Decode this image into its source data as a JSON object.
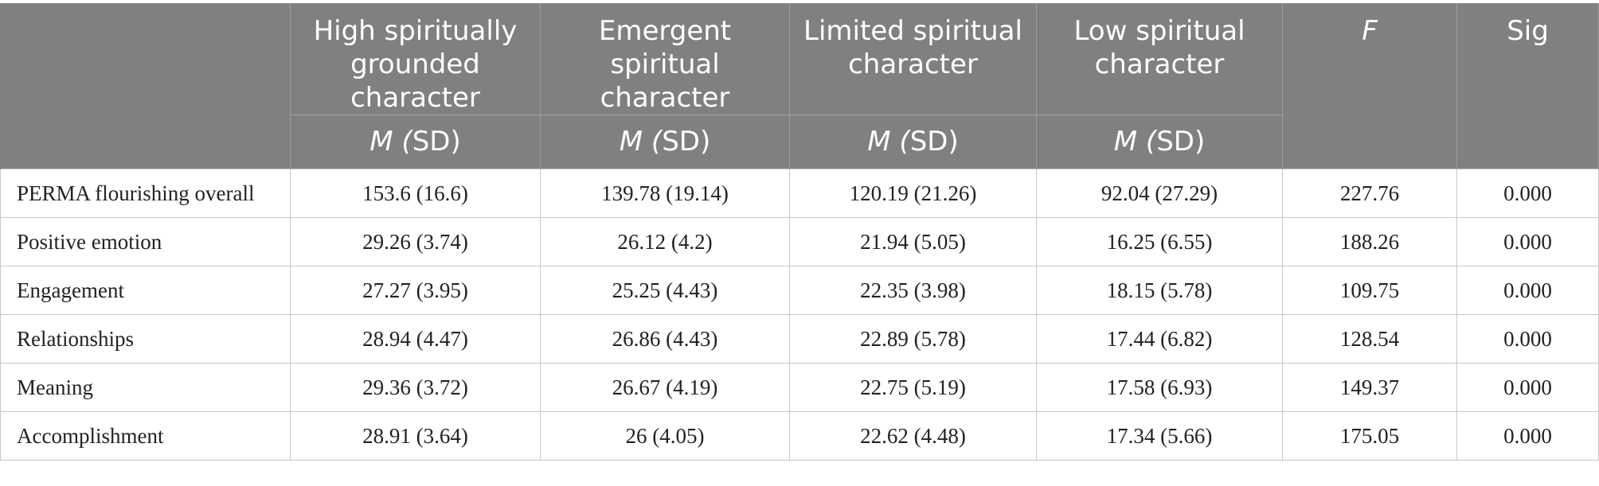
{
  "header": {
    "groups": [
      {
        "title": "High spiritually grounded character",
        "sub_m": "M",
        "sub_sd": "SD"
      },
      {
        "title": "Emergent spiritual character",
        "sub_m": "M",
        "sub_sd": "SD"
      },
      {
        "title": "Limited spiritual character",
        "sub_m": "M",
        "sub_sd": "SD"
      },
      {
        "title": "Low spiritual character",
        "sub_m": "M",
        "sub_sd": "SD"
      }
    ],
    "f_label": "F",
    "sig_label": "Sig"
  },
  "rows": [
    {
      "label": "PERMA flourishing overall",
      "values": [
        "153.6 (16.6)",
        "139.78 (19.14)",
        "120.19 (21.26)",
        "92.04 (27.29)"
      ],
      "f": "227.76",
      "sig": "0.000"
    },
    {
      "label": "Positive emotion",
      "values": [
        "29.26 (3.74)",
        "26.12 (4.2)",
        "21.94 (5.05)",
        "16.25 (6.55)"
      ],
      "f": "188.26",
      "sig": "0.000"
    },
    {
      "label": "Engagement",
      "values": [
        "27.27 (3.95)",
        "25.25 (4.43)",
        "22.35 (3.98)",
        "18.15 (5.78)"
      ],
      "f": "109.75",
      "sig": "0.000"
    },
    {
      "label": "Relationships",
      "values": [
        "28.94 (4.47)",
        "26.86 (4.43)",
        "22.89 (5.78)",
        "17.44 (6.82)"
      ],
      "f": "128.54",
      "sig": "0.000"
    },
    {
      "label": "Meaning",
      "values": [
        "29.36 (3.72)",
        "26.67 (4.19)",
        "22.75 (5.19)",
        "17.58 (6.93)"
      ],
      "f": "149.37",
      "sig": "0.000"
    },
    {
      "label": "Accomplishment",
      "values": [
        "28.91 (3.64)",
        "26 (4.05)",
        "22.62 (4.48)",
        "17.34 (5.66)"
      ],
      "f": "175.05",
      "sig": "0.000"
    }
  ]
}
